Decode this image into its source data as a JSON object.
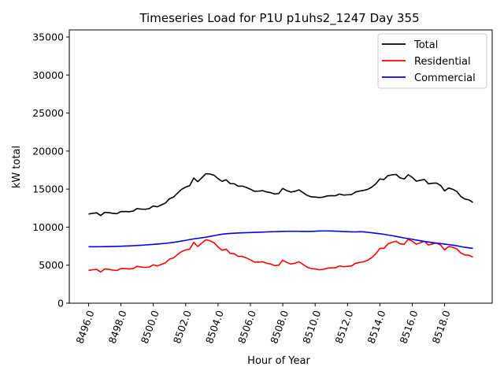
{
  "chart_data": {
    "type": "line",
    "title": "Timeseries Load for P1U p1uhs2_1247  Day 355",
    "xlabel": "Hour of Year",
    "ylabel": "kW total",
    "xlim": [
      8494.81,
      8520.94
    ],
    "ylim": [
      0,
      35930
    ],
    "x_start": 8496.0,
    "x_step": 0.25,
    "xticks": [
      8496,
      8498,
      8500,
      8502,
      8504,
      8506,
      8508,
      8510,
      8512,
      8514,
      8516,
      8518
    ],
    "xtick_labels": [
      "8496.0",
      "8498.0",
      "8500.0",
      "8502.0",
      "8504.0",
      "8506.0",
      "8508.0",
      "8510.0",
      "8512.0",
      "8514.0",
      "8516.0",
      "8518.0"
    ],
    "yticks": [
      0,
      5000,
      10000,
      15000,
      20000,
      25000,
      30000,
      35000
    ],
    "ytick_labels": [
      "0",
      "5000",
      "10000",
      "15000",
      "20000",
      "25000",
      "30000",
      "35000"
    ],
    "grid": false,
    "legend_position": "top-right",
    "series": [
      {
        "name": "Total",
        "color": "#000000",
        "values": [
          11720,
          11820,
          11875,
          11530,
          11940,
          11900,
          11810,
          11775,
          12040,
          12060,
          12030,
          12110,
          12440,
          12370,
          12350,
          12440,
          12780,
          12670,
          12920,
          13170,
          13730,
          13950,
          14480,
          14970,
          15260,
          15460,
          16450,
          15980,
          16500,
          17030,
          16980,
          16830,
          16380,
          16020,
          16230,
          15720,
          15700,
          15380,
          15400,
          15220,
          14990,
          14710,
          14730,
          14800,
          14620,
          14540,
          14360,
          14420,
          15090,
          14800,
          14610,
          14710,
          14900,
          14540,
          14180,
          13990,
          13960,
          13890,
          13950,
          14100,
          14140,
          14120,
          14350,
          14220,
          14250,
          14280,
          14620,
          14750,
          14830,
          14970,
          15260,
          15700,
          16330,
          16260,
          16770,
          16880,
          16930,
          16480,
          16330,
          16890,
          16550,
          16050,
          16160,
          16270,
          15690,
          15770,
          15800,
          15490,
          14770,
          15150,
          14980,
          14700,
          14040,
          13700,
          13580,
          13250
        ]
      },
      {
        "name": "Residential",
        "color": "#ff0000",
        "values": [
          4300,
          4400,
          4450,
          4100,
          4500,
          4450,
          4350,
          4300,
          4550,
          4550,
          4500,
          4550,
          4850,
          4750,
          4700,
          4750,
          5050,
          4900,
          5100,
          5300,
          5800,
          5950,
          6400,
          6800,
          7000,
          7100,
          8000,
          7450,
          7900,
          8350,
          8200,
          7950,
          7400,
          6950,
          7100,
          6550,
          6500,
          6150,
          6150,
          5950,
          5700,
          5400,
          5400,
          5450,
          5250,
          5150,
          4950,
          5000,
          5650,
          5350,
          5150,
          5250,
          5450,
          5100,
          4750,
          4550,
          4500,
          4400,
          4450,
          4600,
          4650,
          4650,
          4900,
          4800,
          4850,
          4900,
          5250,
          5350,
          5450,
          5650,
          6000,
          6500,
          7200,
          7200,
          7800,
          8000,
          8150,
          7800,
          7750,
          8400,
          8150,
          7750,
          7950,
          8150,
          7650,
          7800,
          7900,
          7650,
          7000,
          7450,
          7350,
          7150,
          6600,
          6350,
          6300,
          6050
        ]
      },
      {
        "name": "Commercial",
        "color": "#0000ff",
        "values": [
          7420,
          7420,
          7425,
          7430,
          7440,
          7450,
          7460,
          7475,
          7490,
          7510,
          7530,
          7560,
          7590,
          7620,
          7650,
          7690,
          7730,
          7770,
          7820,
          7870,
          7930,
          8000,
          8080,
          8170,
          8260,
          8360,
          8450,
          8530,
          8600,
          8680,
          8780,
          8880,
          8980,
          9070,
          9130,
          9170,
          9200,
          9230,
          9250,
          9270,
          9290,
          9310,
          9330,
          9350,
          9370,
          9390,
          9410,
          9420,
          9440,
          9450,
          9460,
          9460,
          9450,
          9440,
          9430,
          9440,
          9460,
          9490,
          9500,
          9500,
          9490,
          9470,
          9450,
          9420,
          9400,
          9380,
          9370,
          9400,
          9380,
          9320,
          9260,
          9200,
          9130,
          9060,
          8970,
          8880,
          8780,
          8680,
          8580,
          8490,
          8400,
          8300,
          8210,
          8120,
          8040,
          7970,
          7900,
          7840,
          7770,
          7700,
          7630,
          7550,
          7440,
          7350,
          7280,
          7200
        ]
      }
    ]
  }
}
